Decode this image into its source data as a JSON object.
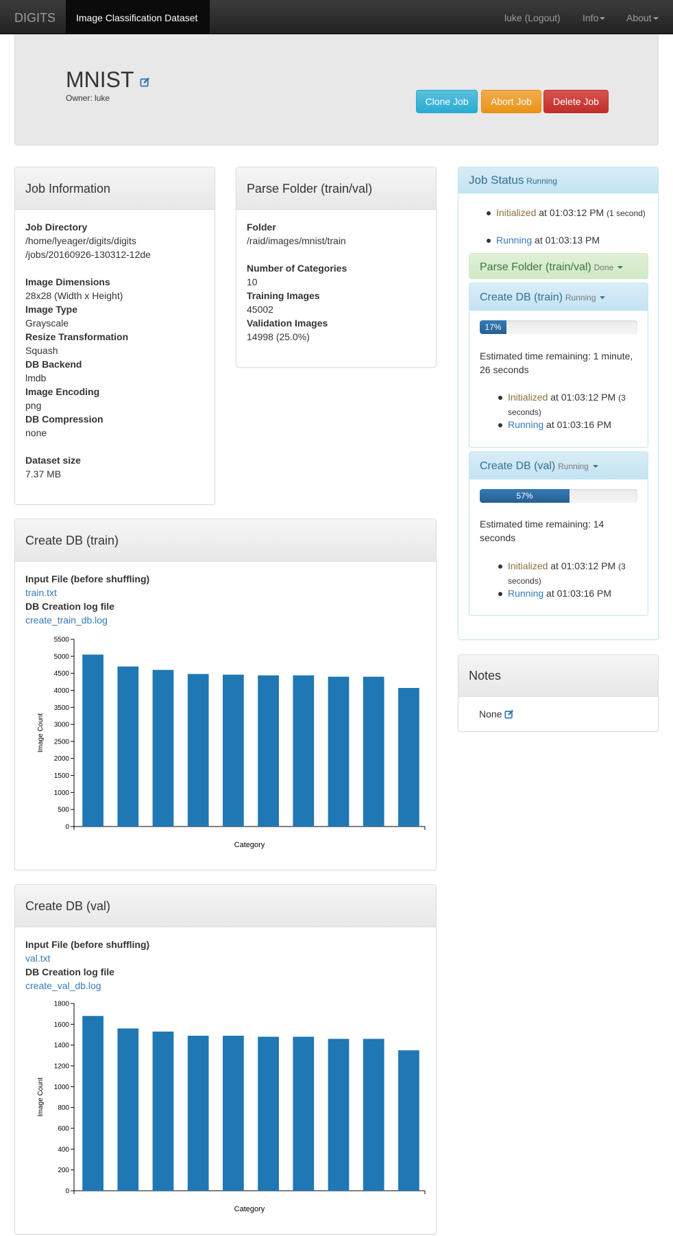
{
  "nav": {
    "brand": "DIGITS",
    "active": "Image Classification Dataset",
    "user": "luke (Logout)",
    "info": "Info",
    "about": "About"
  },
  "header": {
    "title": "MNIST",
    "owner": "Owner: luke",
    "clone": "Clone Job",
    "abort": "Abort Job",
    "delete": "Delete Job"
  },
  "job_info": {
    "title": "Job Information",
    "dir_label": "Job Directory",
    "dir_line1": "/home/lyeager/digits/digits",
    "dir_line2": "/jobs/20160926-130312-12de",
    "dims_label": "Image Dimensions",
    "dims": "28x28 (Width x Height)",
    "type_label": "Image Type",
    "type": "Grayscale",
    "resize_label": "Resize Transformation",
    "resize": "Squash",
    "backend_label": "DB Backend",
    "backend": "lmdb",
    "encoding_label": "Image Encoding",
    "encoding": "png",
    "compression_label": "DB Compression",
    "compression": "none",
    "size_label": "Dataset size",
    "size": "7.37 MB"
  },
  "parse": {
    "title": "Parse Folder (train/val)",
    "folder_label": "Folder",
    "folder": "/raid/images/mnist/train",
    "cat_label": "Number of Categories",
    "cat": "10",
    "train_label": "Training Images",
    "train": "45002",
    "valimg_label": "Validation Images",
    "valimg": "14998 (25.0%)"
  },
  "status": {
    "title": "Job Status",
    "state": "Running",
    "init_word": "Initialized",
    "init_time": " at 01:03:12 PM ",
    "init_dur": "(1 second)",
    "run_word": "Running",
    "run_time": " at 01:03:13 PM",
    "parse_title": "Parse Folder (train/val)",
    "parse_state": "Done",
    "train_title": "Create DB (train)",
    "train_state": "Running",
    "train_progress_label": "17%",
    "train_progress": 0.17,
    "train_eta": "Estimated time remaining: 1 minute, 26 seconds",
    "train_init_time": " at 01:03:12 PM ",
    "train_init_dur": "(3 seconds)",
    "train_run_time": " at 01:03:16 PM",
    "val_title": "Create DB (val)",
    "val_state": "Running",
    "val_progress_label": "57%",
    "val_progress": 0.57,
    "val_eta": "Estimated time remaining: 14 seconds",
    "val_init_time": " at 01:03:12 PM ",
    "val_init_dur": "(3 seconds)",
    "val_run_time": " at 01:03:16 PM"
  },
  "notes": {
    "title": "Notes",
    "value": "None"
  },
  "train_db": {
    "title": "Create DB (train)",
    "input_label": "Input File (before shuffling)",
    "input_file": "train.txt",
    "log_label": "DB Creation log file",
    "log_file": "create_train_db.log"
  },
  "val_db": {
    "title": "Create DB (val)",
    "input_label": "Input File (before shuffling)",
    "input_file": "val.txt",
    "log_label": "DB Creation log file",
    "log_file": "create_val_db.log"
  },
  "chart_data": [
    {
      "type": "bar",
      "xlabel": "Category",
      "ylabel": "Image Count",
      "ylim": [
        0,
        5500
      ],
      "yticks": [
        0,
        500,
        1000,
        1500,
        2000,
        2500,
        3000,
        3500,
        4000,
        4500,
        5000,
        5500
      ],
      "values": [
        5050,
        4700,
        4600,
        4480,
        4460,
        4440,
        4440,
        4400,
        4400,
        4070
      ],
      "color": "#1f77b4"
    },
    {
      "type": "bar",
      "xlabel": "Category",
      "ylabel": "Image Count",
      "ylim": [
        0,
        1800
      ],
      "yticks": [
        0,
        200,
        400,
        600,
        800,
        1000,
        1200,
        1400,
        1600,
        1800
      ],
      "values": [
        1680,
        1560,
        1530,
        1490,
        1490,
        1480,
        1480,
        1460,
        1460,
        1350
      ],
      "color": "#1f77b4"
    }
  ]
}
